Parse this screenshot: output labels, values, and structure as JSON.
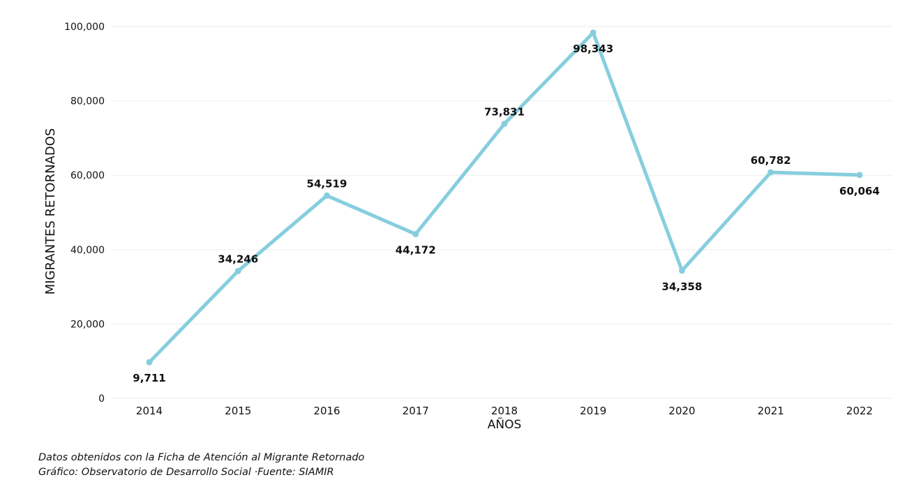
{
  "chart_data": {
    "type": "line",
    "title": "",
    "xlabel": "AÑOS",
    "ylabel": "MIGRANTES RETORNADOS",
    "categories": [
      "2014",
      "2015",
      "2016",
      "2017",
      "2018",
      "2019",
      "2020",
      "2021",
      "2022"
    ],
    "series": [
      {
        "values": [
          9711,
          34246,
          54519,
          44172,
          73831,
          98343,
          34358,
          60782,
          60064
        ],
        "labels": [
          "9,711",
          "34,246",
          "54,519",
          "44,172",
          "73,831",
          "98,343",
          "34,358",
          "60,782",
          "60,064"
        ],
        "label_position": [
          "below",
          "above",
          "above",
          "below",
          "above",
          "below",
          "below",
          "above",
          "below"
        ],
        "color": "#86CEDE"
      }
    ],
    "ylim": [
      0,
      100000
    ],
    "yticks": [
      0,
      20000,
      40000,
      60000,
      80000,
      100000
    ],
    "ytick_labels": [
      "0",
      "20,000",
      "40,000",
      "60,000",
      "80,000",
      "100,000"
    ],
    "grid": true,
    "legend": "none"
  },
  "footnote": {
    "line1": "Datos obtenidos con la Ficha de Atención al Migrante Retornado",
    "line2": "Gráfico: Observatorio de Desarrollo Social  ·Fuente: SIAMIR"
  }
}
